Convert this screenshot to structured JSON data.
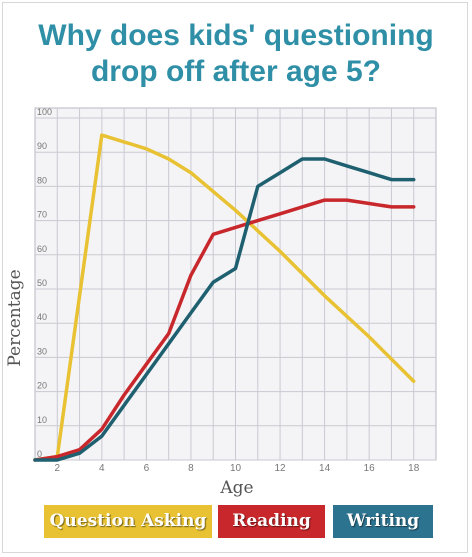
{
  "title_line1": "Why does kids' questioning",
  "title_line2": "drop off after age 5?",
  "chart_data": {
    "type": "line",
    "title": "Why does kids' questioning drop off after age 5?",
    "xlabel": "Age",
    "ylabel": "Percentage",
    "xlim": [
      1,
      19
    ],
    "ylim": [
      0,
      100
    ],
    "xticks": [
      2,
      4,
      6,
      8,
      10,
      12,
      14,
      16,
      18
    ],
    "yticks": [
      0,
      10,
      20,
      30,
      40,
      50,
      60,
      70,
      80,
      90,
      100
    ],
    "grid": true,
    "legend_position": "bottom",
    "series": [
      {
        "name": "Question Asking",
        "color": "#e8c232",
        "x": [
          1,
          2,
          4,
          6,
          7,
          8,
          10,
          12,
          14,
          16,
          18
        ],
        "y": [
          0,
          1,
          95,
          91,
          88,
          84,
          73,
          61,
          48,
          36,
          23
        ]
      },
      {
        "name": "Reading",
        "color": "#c8272b",
        "x": [
          1,
          2,
          3,
          4,
          5,
          6,
          7,
          8,
          9,
          10,
          11,
          12,
          13,
          14,
          15,
          16,
          17,
          18
        ],
        "y": [
          0,
          1,
          3,
          9,
          19,
          28,
          37,
          54,
          66,
          68,
          70,
          72,
          74,
          76,
          76,
          75,
          74,
          74
        ]
      },
      {
        "name": "Writing",
        "color": "#1f6070",
        "x": [
          1,
          2,
          3,
          4,
          5,
          6,
          7,
          8,
          9,
          10,
          11,
          12,
          13,
          14,
          15,
          16,
          17,
          18
        ],
        "y": [
          0,
          0,
          2,
          7,
          16,
          25,
          34,
          43,
          52,
          56,
          80,
          84,
          88,
          88,
          86,
          84,
          82,
          82
        ]
      }
    ]
  },
  "legend": [
    {
      "label": "Question Asking",
      "color": "#e8c232"
    },
    {
      "label": "Reading",
      "color": "#c8272b"
    },
    {
      "label": "Writing",
      "color": "#2c7390"
    }
  ]
}
